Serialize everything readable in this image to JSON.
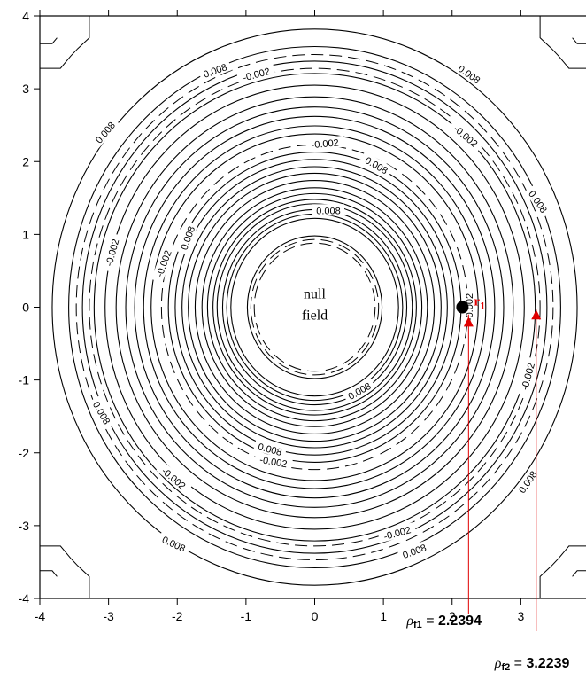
{
  "chart_data": {
    "type": "contour",
    "x_range": [
      -4,
      4
    ],
    "y_range": [
      -4,
      4
    ],
    "x_ticks": [
      "-4",
      "-3",
      "-2",
      "-1",
      "0",
      "1",
      "2",
      "3",
      "4"
    ],
    "y_ticks": [
      "4",
      "3",
      "2",
      "1",
      "0",
      "-1",
      "-2",
      "-3",
      "-4"
    ],
    "solid_contour_radii": [
      0.98,
      1.22,
      1.28,
      1.34,
      1.42,
      1.48,
      1.56,
      1.64,
      1.74,
      1.84,
      1.93,
      2.03,
      2.13,
      2.38,
      2.49,
      2.62,
      2.75,
      2.89,
      3.05,
      3.21,
      3.38,
      3.58,
      3.82
    ],
    "dashed_contour_radii": [
      0.88,
      0.93,
      2.23,
      3.28,
      3.47
    ],
    "contour_labels": [
      {
        "text": "0.008",
        "x": -1.45,
        "y": 3.25,
        "rot": -20
      },
      {
        "text": "-0.002",
        "x": -0.85,
        "y": 3.2,
        "rot": -15
      },
      {
        "text": "0.008",
        "x": 2.25,
        "y": 3.2,
        "rot": 35
      },
      {
        "text": "0.008",
        "x": -3.05,
        "y": 2.4,
        "rot": -50
      },
      {
        "text": "-0.002",
        "x": 2.2,
        "y": 2.35,
        "rot": 40
      },
      {
        "text": "-0.002",
        "x": 0.15,
        "y": 2.25,
        "rot": -5
      },
      {
        "text": "0.008",
        "x": 0.9,
        "y": 1.95,
        "rot": 30
      },
      {
        "text": "0.008",
        "x": 3.25,
        "y": 1.45,
        "rot": 55
      },
      {
        "text": "0.008",
        "x": 0.2,
        "y": 1.33,
        "rot": 0
      },
      {
        "text": "-0.002",
        "x": -2.95,
        "y": 0.75,
        "rot": -75
      },
      {
        "text": "-0.002",
        "x": -2.2,
        "y": 0.6,
        "rot": -70
      },
      {
        "text": "0.008",
        "x": -1.85,
        "y": 0.95,
        "rot": -70
      },
      {
        "text": "-0.002",
        "x": 2.25,
        "y": 0.0,
        "rot": -90
      },
      {
        "text": "0.008",
        "x": 0.65,
        "y": -1.15,
        "rot": -30
      },
      {
        "text": "-0.002",
        "x": 3.1,
        "y": -0.95,
        "rot": -75
      },
      {
        "text": "0.008",
        "x": -3.1,
        "y": -1.45,
        "rot": 60
      },
      {
        "text": "0.008",
        "x": -0.65,
        "y": -1.95,
        "rot": 15
      },
      {
        "text": "-0.002",
        "x": -0.6,
        "y": -2.12,
        "rot": 10
      },
      {
        "text": "-0.002",
        "x": -2.05,
        "y": -2.35,
        "rot": 40
      },
      {
        "text": "0.008",
        "x": 3.1,
        "y": -2.4,
        "rot": -55
      },
      {
        "text": "0.008",
        "x": -2.05,
        "y": -3.25,
        "rot": 25
      },
      {
        "text": "-0.002",
        "x": 1.2,
        "y": -3.1,
        "rot": -15
      },
      {
        "text": "0.008",
        "x": 1.45,
        "y": -3.35,
        "rot": -20
      }
    ],
    "center_label": [
      "null",
      "field"
    ],
    "points": [
      {
        "name": "r1",
        "label": "r",
        "sub": "1",
        "x": 2.15,
        "y": 0.0,
        "shape": "circle",
        "color": "#000000"
      },
      {
        "name": "rho-f1-marker",
        "x": 2.2394,
        "y": -0.2,
        "shape": "triangle",
        "color": "#e00000"
      },
      {
        "name": "rho-f2-marker",
        "x": 3.2239,
        "y": -0.1,
        "shape": "triangle",
        "color": "#e00000"
      }
    ],
    "annotations": [
      {
        "symbol": "ρ",
        "sub": "f1",
        "equals": " = ",
        "value": "2.2394",
        "x": 2.2394
      },
      {
        "symbol": "ρ",
        "sub": "f2",
        "equals": " = ",
        "value": "3.2239",
        "x": 3.2239
      }
    ],
    "accent_color": "#e00000"
  }
}
